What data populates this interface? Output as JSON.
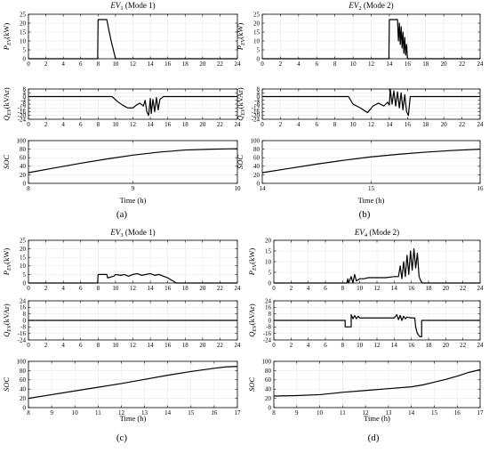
{
  "figure": {
    "panel_labels": [
      "(a)",
      "(b)",
      "(c)",
      "(d)"
    ]
  },
  "chart_data": [
    {
      "type": "line",
      "panel": "(a)",
      "title": "EV1 (Mode 1)",
      "title_main": "EV",
      "title_sub": "1",
      "title_rest": " (Mode 1)",
      "xlabel": "Time (h)",
      "subplots": [
        {
          "ylabel": "P_EV(kW)",
          "ylabel_main": "P",
          "ylabel_sub": "EV",
          "ylabel_rest": "(kW)",
          "xlim": [
            0,
            24
          ],
          "ylim": [
            0,
            25
          ],
          "xticks": [
            0,
            2,
            4,
            6,
            8,
            10,
            12,
            14,
            16,
            18,
            20,
            22,
            24
          ],
          "yticks": [
            0,
            5,
            10,
            15,
            20,
            25
          ],
          "x": [
            0,
            7.95,
            8.0,
            9.0,
            9.2,
            9.5,
            9.8,
            10.0,
            24
          ],
          "y": [
            0,
            0,
            22,
            22,
            17,
            10,
            4,
            0,
            0
          ]
        },
        {
          "ylabel": "Q_EV(kVAr)",
          "ylabel_main": "Q",
          "ylabel_sub": "EV",
          "ylabel_rest": "(kVAr)",
          "xlim": [
            0,
            24
          ],
          "ylim": [
            -24,
            8
          ],
          "xticks": [
            0,
            2,
            4,
            6,
            8,
            10,
            12,
            14,
            16,
            18,
            20,
            22,
            24
          ],
          "yticks": [
            8,
            4,
            0,
            -4,
            -8,
            -12,
            -16,
            -20,
            -24
          ],
          "x": [
            0,
            8.0,
            9.6,
            10.2,
            10.8,
            11.4,
            12.0,
            12.4,
            12.8,
            13.2,
            13.4,
            13.6,
            13.8,
            14.0,
            14.1,
            14.3,
            14.5,
            14.7,
            14.9,
            15.1,
            15.5,
            16.0,
            24
          ],
          "y": [
            0,
            0,
            0,
            -5,
            -9,
            -12,
            -12,
            -9,
            -7,
            -10,
            -4,
            -16,
            -20,
            -2,
            -18,
            -3,
            -16,
            -1,
            -14,
            -3,
            0,
            0,
            0
          ]
        },
        {
          "ylabel": "SOC",
          "xlim": [
            8,
            10
          ],
          "ylim": [
            0,
            100
          ],
          "xticks": [
            8,
            9,
            10
          ],
          "yticks": [
            0,
            20,
            40,
            60,
            80,
            100
          ],
          "x": [
            8,
            8.25,
            8.5,
            8.75,
            9.0,
            9.25,
            9.5,
            9.75,
            10
          ],
          "y": [
            25,
            36,
            47,
            57,
            66,
            73,
            78,
            80,
            81
          ]
        }
      ]
    },
    {
      "type": "line",
      "panel": "(b)",
      "title": "EV2 (Mode 2)",
      "title_main": "EV",
      "title_sub": "2",
      "title_rest": " (Mode 2)",
      "xlabel": "Time (h)",
      "subplots": [
        {
          "ylabel": "P_EV(kW)",
          "ylabel_main": "P",
          "ylabel_sub": "EV",
          "ylabel_rest": "(kW)",
          "xlim": [
            0,
            24
          ],
          "ylim": [
            0,
            25
          ],
          "xticks": [
            0,
            2,
            4,
            6,
            8,
            10,
            12,
            14,
            16,
            18,
            20,
            22,
            24
          ],
          "yticks": [
            0,
            5,
            10,
            15,
            20,
            25
          ],
          "x": [
            0,
            13.95,
            14.0,
            14.9,
            15.0,
            15.1,
            15.2,
            15.3,
            15.4,
            15.5,
            15.6,
            15.7,
            15.8,
            15.9,
            16.0,
            24
          ],
          "y": [
            0,
            0,
            22,
            22,
            10,
            20,
            8,
            18,
            6,
            15,
            3,
            12,
            2,
            8,
            0,
            0
          ]
        },
        {
          "ylabel": "Q_EV(kVAr)",
          "ylabel_main": "Q",
          "ylabel_sub": "EV",
          "ylabel_rest": "(kVAr)",
          "xlim": [
            0,
            24
          ],
          "ylim": [
            -24,
            8
          ],
          "xticks": [
            0,
            2,
            4,
            6,
            8,
            10,
            12,
            14,
            16,
            18,
            20,
            22,
            24
          ],
          "yticks": [
            8,
            4,
            0,
            -4,
            -8,
            -12,
            -16,
            -20,
            -24
          ],
          "x": [
            0,
            9.5,
            10.0,
            10.8,
            11.6,
            12.2,
            12.8,
            13.4,
            13.8,
            14.0,
            14.1,
            14.3,
            14.5,
            14.7,
            14.9,
            15.1,
            15.3,
            15.5,
            15.7,
            15.9,
            16.1,
            16.3,
            24
          ],
          "y": [
            0,
            0,
            -8,
            -12,
            -17,
            -10,
            -7,
            -10,
            -6,
            -9,
            8,
            -8,
            6,
            -10,
            5,
            -12,
            4,
            -14,
            2,
            -16,
            -20,
            0,
            0
          ]
        },
        {
          "ylabel": "SOC",
          "xlim": [
            14,
            16
          ],
          "ylim": [
            0,
            100
          ],
          "xticks": [
            14,
            15,
            16
          ],
          "yticks": [
            0,
            20,
            40,
            60,
            80,
            100
          ],
          "x": [
            14,
            14.25,
            14.5,
            14.75,
            15.0,
            15.25,
            15.5,
            15.75,
            16
          ],
          "y": [
            25,
            35,
            45,
            54,
            62,
            68,
            73,
            77,
            80
          ]
        }
      ]
    },
    {
      "type": "line",
      "panel": "(c)",
      "title": "EV3 (Mode 1)",
      "title_main": "EV",
      "title_sub": "3",
      "title_rest": " (Mode 1)",
      "xlabel": "Time (h)",
      "subplots": [
        {
          "ylabel": "P_EV(kW)",
          "ylabel_main": "P",
          "ylabel_sub": "EV",
          "ylabel_rest": "(kW)",
          "xlim": [
            0,
            24
          ],
          "ylim": [
            0,
            25
          ],
          "xticks": [
            0,
            2,
            4,
            6,
            8,
            10,
            12,
            14,
            16,
            18,
            20,
            22,
            24
          ],
          "yticks": [
            0,
            5,
            10,
            15,
            20,
            25
          ],
          "x": [
            0,
            7.95,
            8.0,
            9.0,
            9.1,
            9.8,
            10.0,
            10.6,
            11.0,
            11.5,
            12.0,
            12.5,
            13.0,
            13.5,
            14.0,
            14.5,
            15.0,
            15.5,
            16.0,
            16.5,
            17.0,
            24
          ],
          "y": [
            0,
            0,
            5,
            5,
            3,
            4,
            5,
            4.5,
            5,
            4,
            5,
            5.5,
            4.5,
            5,
            5.5,
            4.5,
            5,
            4,
            3,
            1.5,
            0,
            0
          ]
        },
        {
          "ylabel": "Q_EV(kVAr)",
          "ylabel_main": "Q",
          "ylabel_sub": "EV",
          "ylabel_rest": "(kVAr)",
          "xlim": [
            0,
            24
          ],
          "ylim": [
            -24,
            24
          ],
          "xticks": [
            0,
            2,
            4,
            6,
            8,
            10,
            12,
            14,
            16,
            18,
            20,
            22,
            24
          ],
          "yticks": [
            24,
            16,
            8,
            0,
            -8,
            -16,
            -24
          ],
          "x": [
            0,
            24
          ],
          "y": [
            0,
            0
          ]
        },
        {
          "ylabel": "SOC",
          "xlim": [
            8,
            17
          ],
          "ylim": [
            0,
            100
          ],
          "xticks": [
            8,
            9,
            10,
            11,
            12,
            13,
            14,
            15,
            16,
            17
          ],
          "yticks": [
            0,
            20,
            40,
            60,
            80,
            100
          ],
          "x": [
            8,
            9,
            10,
            11,
            12,
            13,
            14,
            15,
            16,
            16.5,
            17
          ],
          "y": [
            20,
            28,
            36,
            44,
            52,
            61,
            70,
            78,
            85,
            88,
            89
          ]
        }
      ]
    },
    {
      "type": "line",
      "panel": "(d)",
      "title": "EV4 (Mode 2)",
      "title_main": "EV",
      "title_sub": "4",
      "title_rest": " (Mode 2)",
      "xlabel": "Time (h)",
      "subplots": [
        {
          "ylabel": "P_EV(kW)",
          "ylabel_main": "P",
          "ylabel_sub": "EV",
          "ylabel_rest": "(kW)",
          "xlim": [
            0,
            24
          ],
          "ylim": [
            0,
            20
          ],
          "xticks": [
            0,
            2,
            4,
            6,
            8,
            10,
            12,
            14,
            16,
            18,
            20,
            22,
            24
          ],
          "yticks": [
            0,
            5,
            10,
            15,
            20
          ],
          "x": [
            0,
            8.5,
            8.6,
            8.7,
            9.0,
            9.2,
            9.4,
            9.6,
            10.0,
            10.5,
            11.0,
            12.0,
            13.0,
            14.0,
            14.5,
            14.7,
            14.9,
            15.1,
            15.3,
            15.5,
            15.7,
            15.9,
            16.1,
            16.3,
            16.5,
            16.7,
            16.9,
            17.1,
            17.3,
            24
          ],
          "y": [
            0,
            0,
            2,
            0,
            3,
            0,
            4,
            1,
            2,
            2,
            2.5,
            2.5,
            2.5,
            3,
            3,
            8,
            2,
            10,
            3,
            13,
            4,
            15,
            6,
            16,
            7,
            14,
            3,
            1,
            0,
            0
          ]
        },
        {
          "ylabel": "Q_EV(kVAr)",
          "ylabel_main": "Q",
          "ylabel_sub": "EV",
          "ylabel_rest": "(kVAr)",
          "xlim": [
            0,
            24
          ],
          "ylim": [
            -24,
            24
          ],
          "xticks": [
            0,
            2,
            4,
            6,
            8,
            10,
            12,
            14,
            16,
            18,
            20,
            22,
            24
          ],
          "yticks": [
            24,
            16,
            8,
            0,
            -8,
            -16,
            -24
          ],
          "x": [
            0,
            8.3,
            8.3,
            9.0,
            9.0,
            9.2,
            9.4,
            9.6,
            9.8,
            10.0,
            12.0,
            14.0,
            14.3,
            14.5,
            14.7,
            14.9,
            15.1,
            15.3,
            15.5,
            16.0,
            16.4,
            16.5,
            16.7,
            17.0,
            17.2,
            17.2,
            24
          ],
          "y": [
            0,
            0,
            -8,
            -8,
            7,
            2,
            6,
            2,
            5,
            3,
            3,
            3,
            7,
            1,
            6,
            0,
            5,
            2,
            4,
            3,
            3,
            -8,
            -16,
            -20,
            -20,
            0,
            0
          ]
        },
        {
          "ylabel": "SOC",
          "xlim": [
            8,
            17
          ],
          "ylim": [
            0,
            100
          ],
          "xticks": [
            8,
            9,
            10,
            11,
            12,
            13,
            14,
            15,
            16,
            17
          ],
          "yticks": [
            0,
            20,
            40,
            60,
            80,
            100
          ],
          "x": [
            8,
            9,
            10,
            11,
            12,
            13,
            14,
            14.5,
            15,
            15.5,
            16,
            16.5,
            17
          ],
          "y": [
            25,
            26,
            28,
            33,
            37,
            41,
            45,
            49,
            55,
            61,
            68,
            76,
            82
          ]
        }
      ]
    }
  ]
}
